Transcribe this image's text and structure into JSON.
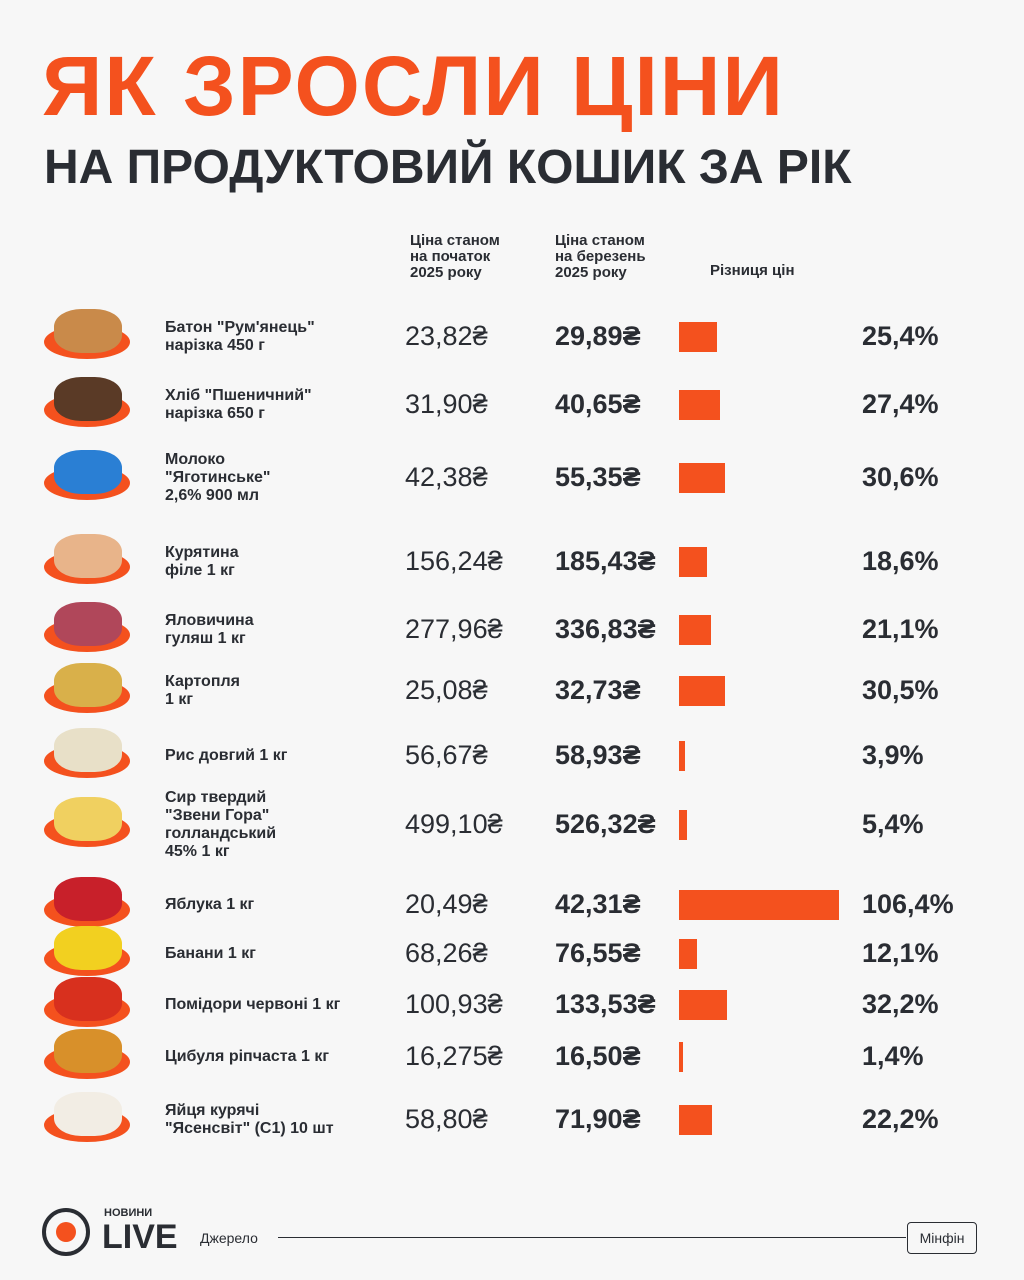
{
  "header": {
    "title": "ЯК ЗРОСЛИ ЦІНИ",
    "subtitle": "НА ПРОДУКТОВИЙ КОШИК ЗА РІК"
  },
  "columns": {
    "start": [
      "Ціна станом",
      "на початок",
      "2025 року"
    ],
    "end": [
      "Ціна станом",
      "на березень",
      "2025 року"
    ],
    "diff": "Різниця цін"
  },
  "rows": [
    {
      "name": [
        "Батон \"Рум'янець\"",
        "нарізка 450 г"
      ],
      "start": "23,82₴",
      "end": "29,89₴",
      "change": 25.4,
      "change_label": "25,4%"
    },
    {
      "name": [
        "Хліб \"Пшеничний\"",
        "нарізка 650 г"
      ],
      "start": "31,90₴",
      "end": "40,65₴",
      "change": 27.4,
      "change_label": "27,4%"
    },
    {
      "name": [
        "Молоко",
        "\"Яготинське\"",
        "2,6% 900 мл"
      ],
      "start": "42,38₴",
      "end": "55,35₴",
      "change": 30.6,
      "change_label": "30,6%"
    },
    {
      "name": [
        "Курятина",
        "філе 1 кг"
      ],
      "start": "156,24₴",
      "end": "185,43₴",
      "change": 18.6,
      "change_label": "18,6%"
    },
    {
      "name": [
        "Яловичина",
        "гуляш 1 кг"
      ],
      "start": "277,96₴",
      "end": "336,83₴",
      "change": 21.1,
      "change_label": "21,1%"
    },
    {
      "name": [
        "Картопля",
        "1 кг"
      ],
      "start": "25,08₴",
      "end": "32,73₴",
      "change": 30.5,
      "change_label": "30,5%"
    },
    {
      "name": [
        "Рис довгий 1 кг"
      ],
      "start": "56,67₴",
      "end": "58,93₴",
      "change": 3.9,
      "change_label": "3,9%"
    },
    {
      "name": [
        "Сир твердий",
        "\"Звени Гора\"",
        "голландський",
        "45% 1 кг"
      ],
      "start": "499,10₴",
      "end": "526,32₴",
      "change": 5.4,
      "change_label": "5,4%"
    },
    {
      "name": [
        "Яблука 1 кг"
      ],
      "start": "20,49₴",
      "end": "42,31₴",
      "change": 106.4,
      "change_label": "106,4%"
    },
    {
      "name": [
        "Банани 1 кг"
      ],
      "start": "68,26₴",
      "end": "76,55₴",
      "change": 12.1,
      "change_label": "12,1%"
    },
    {
      "name": [
        "Помідори червоні 1 кг"
      ],
      "start": "100,93₴",
      "end": "133,53₴",
      "change": 32.2,
      "change_label": "32,2%"
    },
    {
      "name": [
        "Цибуля ріпчаста 1 кг"
      ],
      "start": "16,275₴",
      "end": "16,50₴",
      "change": 1.4,
      "change_label": "1,4%"
    },
    {
      "name": [
        "Яйця курячі",
        "\"Ясенсвіт\" (С1) 10 шт"
      ],
      "start": "58,80₴",
      "end": "71,90₴",
      "change": 22.2,
      "change_label": "22,2%"
    }
  ],
  "footer": {
    "brand_small": "НОВИНИ",
    "brand": "LIVE",
    "source_label": "Джерело",
    "source": "Мінфін"
  }
}
